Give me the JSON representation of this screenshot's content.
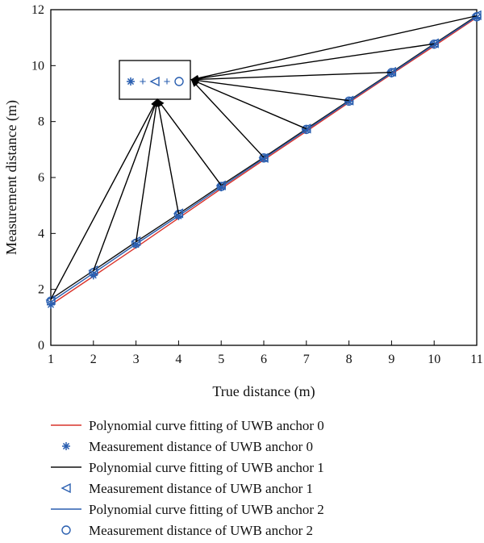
{
  "chart_data": {
    "type": "line",
    "xlabel": "True distance (m)",
    "ylabel": "Measurement distance (m)",
    "xlim": [
      1,
      11
    ],
    "ylim": [
      0,
      12
    ],
    "xticks": [
      1,
      2,
      3,
      4,
      5,
      6,
      7,
      8,
      9,
      10,
      11
    ],
    "yticks": [
      0,
      2,
      4,
      6,
      8,
      10,
      12
    ],
    "x": [
      1,
      2,
      3,
      4,
      5,
      6,
      7,
      8,
      9,
      10,
      11
    ],
    "grid": false,
    "legend_position": "bottom",
    "series": [
      {
        "name": "Polynomial curve fitting of UWB anchor 0",
        "kind": "line",
        "color": "#d9332b",
        "values": [
          1.45,
          2.47,
          3.5,
          4.55,
          5.6,
          6.63,
          7.65,
          8.68,
          9.7,
          10.7,
          11.72
        ]
      },
      {
        "name": "Measurement distance of UWB anchor 0",
        "kind": "marker",
        "marker": "asterisk",
        "color": "#2a5fb0",
        "values": [
          1.45,
          2.5,
          3.6,
          4.62,
          5.65,
          6.68,
          7.7,
          8.72,
          9.72,
          10.75,
          11.72
        ]
      },
      {
        "name": "Polynomial curve fitting of UWB anchor 1",
        "kind": "line",
        "color": "#111111",
        "values": [
          1.65,
          2.67,
          3.7,
          4.7,
          5.72,
          6.72,
          7.74,
          8.75,
          9.76,
          10.78,
          11.78
        ]
      },
      {
        "name": "Measurement distance of UWB anchor 1",
        "kind": "marker",
        "marker": "triangle-left",
        "color": "#2a5fb0",
        "values": [
          1.62,
          2.68,
          3.72,
          4.72,
          5.72,
          6.7,
          7.75,
          8.75,
          9.78,
          10.8,
          11.8
        ]
      },
      {
        "name": "Polynomial curve fitting of UWB anchor 2",
        "kind": "line",
        "color": "#2a5fb0",
        "values": [
          1.55,
          2.58,
          3.62,
          4.63,
          5.66,
          6.68,
          7.7,
          8.72,
          9.73,
          10.75,
          11.75
        ]
      },
      {
        "name": "Measurement distance of UWB anchor 2",
        "kind": "marker",
        "marker": "circle",
        "color": "#2a5fb0",
        "values": [
          1.58,
          2.6,
          3.65,
          4.68,
          5.68,
          6.7,
          7.72,
          8.73,
          9.75,
          10.77,
          11.75
        ]
      }
    ],
    "annotations": [
      {
        "label": "+",
        "target_x": [
          1,
          2,
          3,
          4,
          5
        ],
        "arrow_head_at": [
          3.5,
          8.8
        ]
      },
      {
        "label": "+",
        "target_x": [
          6,
          7,
          8,
          9,
          10,
          11
        ],
        "arrow_head_at": [
          4.3,
          9.5
        ]
      }
    ]
  }
}
